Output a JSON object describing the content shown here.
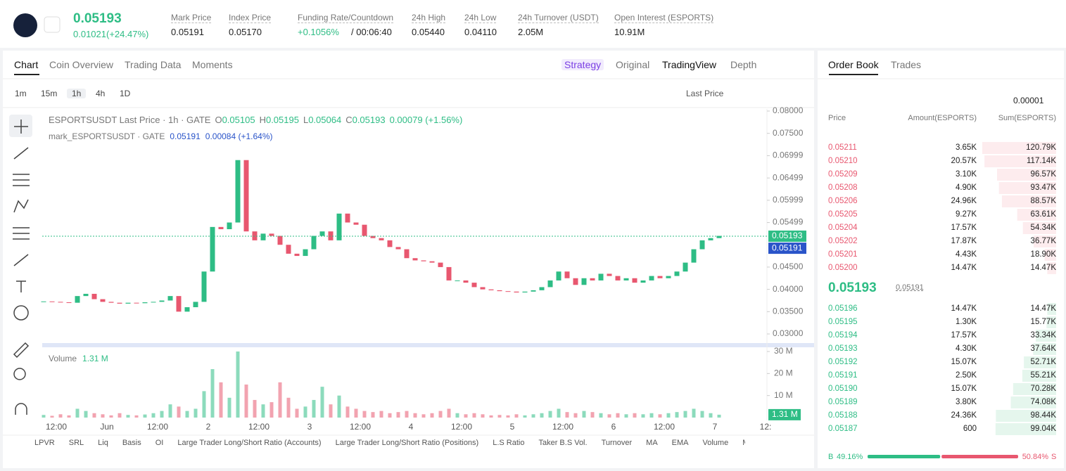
{
  "header": {
    "price": "0.05193",
    "change": "0.01021(+24.47%)",
    "stats": [
      {
        "label": "Mark Price",
        "value": "0.05191"
      },
      {
        "label": "Index Price",
        "value": "0.05170"
      },
      {
        "label": "Funding Rate/Countdown",
        "value": "+0.1056%",
        "extra": "/ 00:06:40"
      },
      {
        "label": "24h High",
        "value": "0.05440"
      },
      {
        "label": "24h Low",
        "value": "0.04110"
      },
      {
        "label": "24h Turnover (USDT)",
        "value": "2.05M"
      },
      {
        "label": "Open Interest (ESPORTS)",
        "value": "10.91M"
      }
    ]
  },
  "chart_tabs": [
    "Chart",
    "Coin Overview",
    "Trading Data",
    "Moments"
  ],
  "view_tabs": [
    "Strategy",
    "Original",
    "TradingView",
    "Depth"
  ],
  "intervals": [
    "1m",
    "15m",
    "1h",
    "4h",
    "1D"
  ],
  "price_source": "Last Price",
  "chart_data": {
    "type": "candlestick",
    "title": "ESPORTSUSDT Last Price · 1h · GATE",
    "ohlc": [
      {
        "key": "O",
        "value": "0.05105"
      },
      {
        "key": "H",
        "value": "0.05195"
      },
      {
        "key": "L",
        "value": "0.05064"
      },
      {
        "key": "C",
        "value": "0.05193"
      }
    ],
    "change": "0.00079 (+1.56%)",
    "mark_title": "mark_ESPORTSUSDT · GATE",
    "mark_values": [
      "0.05191",
      "0.00084 (+1.64%)"
    ],
    "x_labels": [
      "12:00",
      "Jun",
      "12:00",
      "2",
      "12:00",
      "3",
      "12:00",
      "4",
      "12:00",
      "5",
      "12:00",
      "6",
      "12:00",
      "7",
      "12:"
    ],
    "closes": [
      0.0373,
      0.0372,
      0.0371,
      0.037,
      0.0385,
      0.039,
      0.0378,
      0.0372,
      0.037,
      0.0368,
      0.037,
      0.0369,
      0.0371,
      0.0372,
      0.0375,
      0.0385,
      0.035,
      0.036,
      0.0372,
      0.044,
      0.054,
      0.0535,
      0.055,
      0.069,
      0.053,
      0.051,
      0.0525,
      0.052,
      0.05,
      0.048,
      0.0475,
      0.049,
      0.052,
      0.053,
      0.051,
      0.057,
      0.055,
      0.0545,
      0.052,
      0.0515,
      0.051,
      0.0495,
      0.049,
      0.047,
      0.0465,
      0.0463,
      0.046,
      0.045,
      0.042,
      0.042,
      0.0415,
      0.0405,
      0.04,
      0.0398,
      0.0396,
      0.0395,
      0.0393,
      0.0395,
      0.0398,
      0.0405,
      0.042,
      0.044,
      0.0425,
      0.041,
      0.0425,
      0.042,
      0.0435,
      0.043,
      0.042,
      0.0425,
      0.0415,
      0.042,
      0.043,
      0.0425,
      0.043,
      0.044,
      0.046,
      0.049,
      0.051,
      0.0515,
      0.052
    ],
    "ylim": [
      0.02764,
      0.08047
    ],
    "yticks": [
      {
        "value": 0.08,
        "label": "0.08000"
      },
      {
        "value": 0.075,
        "label": "0.07500"
      },
      {
        "value": 0.06999,
        "label": "0.06999"
      },
      {
        "value": 0.06499,
        "label": "0.06499"
      },
      {
        "value": 0.05999,
        "label": "0.05999"
      },
      {
        "value": 0.05499,
        "label": "0.05499"
      },
      {
        "value": 0.045,
        "label": "0.04500"
      },
      {
        "value": 0.04,
        "label": "0.04000"
      },
      {
        "value": 0.035,
        "label": "0.03500"
      },
      {
        "value": 0.03,
        "label": "0.03000"
      }
    ],
    "last_price": {
      "value": 0.05193,
      "label": "0.05193"
    },
    "mark_price": {
      "value": 0.05191,
      "label": "0.05191"
    },
    "volume": {
      "title": "Volume",
      "current": {
        "value": 1.31,
        "label": "1.31 M"
      },
      "values": [
        1.2,
        0.8,
        1.5,
        1,
        4,
        3,
        2,
        1.5,
        1,
        2,
        1.2,
        1,
        1.4,
        2,
        3,
        6,
        5,
        3,
        4,
        12,
        22,
        16,
        9,
        30,
        15,
        8,
        6,
        7,
        16,
        9,
        4,
        5,
        8,
        14,
        6,
        10,
        5,
        4,
        3,
        2.5,
        3,
        2,
        2.5,
        3,
        2,
        1.5,
        2,
        3,
        4,
        2,
        1.5,
        2,
        1.5,
        1,
        1.2,
        1,
        1.5,
        1,
        1.5,
        2,
        3,
        4,
        2.5,
        2,
        3,
        2.5,
        2,
        1.5,
        2,
        1.5,
        2,
        1.5,
        2,
        1.5,
        2,
        2.5,
        3,
        4,
        3,
        2,
        1.31
      ],
      "ylim": [
        0,
        31.6
      ],
      "yticks": [
        {
          "value": 10,
          "label": "10 M"
        },
        {
          "value": 20,
          "label": "20 M"
        },
        {
          "value": 30,
          "label": "30 M"
        }
      ]
    },
    "colors": {
      "up": "#2ebd85",
      "down": "#e8576f"
    }
  },
  "indicators": [
    "LPVR",
    "SRL",
    "Liq",
    "Basis",
    "OI",
    "Large Trader Long/Short Ratio (Accounts)",
    "Large Trader Long/Short Ratio (Positions)",
    "L.S Ratio",
    "Taker B.S Vol.",
    "Turnover",
    "MA",
    "EMA",
    "Volume",
    "MACD"
  ],
  "order_book": {
    "tabs": [
      "Order Book",
      "Trades"
    ],
    "precision": "0.00001",
    "columns": [
      "Price",
      "Amount(ESPORTS)",
      "Sum(ESPORTS)"
    ],
    "asks": [
      {
        "price": "0.05211",
        "amount": "3.65K",
        "sum": 120.79,
        "sum_label": "120.79K"
      },
      {
        "price": "0.05210",
        "amount": "20.57K",
        "sum": 117.14,
        "sum_label": "117.14K"
      },
      {
        "price": "0.05209",
        "amount": "3.10K",
        "sum": 96.57,
        "sum_label": "96.57K"
      },
      {
        "price": "0.05208",
        "amount": "4.90K",
        "sum": 93.47,
        "sum_label": "93.47K"
      },
      {
        "price": "0.05206",
        "amount": "24.96K",
        "sum": 88.57,
        "sum_label": "88.57K"
      },
      {
        "price": "0.05205",
        "amount": "9.27K",
        "sum": 63.61,
        "sum_label": "63.61K"
      },
      {
        "price": "0.05204",
        "amount": "17.57K",
        "sum": 54.34,
        "sum_label": "54.34K"
      },
      {
        "price": "0.05202",
        "amount": "17.87K",
        "sum": 36.77,
        "sum_label": "36.77K"
      },
      {
        "price": "0.05201",
        "amount": "4.43K",
        "sum": 18.9,
        "sum_label": "18.90K"
      },
      {
        "price": "0.05200",
        "amount": "14.47K",
        "sum": 14.47,
        "sum_label": "14.47K"
      }
    ],
    "mid": {
      "price": "0.05193",
      "mark": "0.05191"
    },
    "bids": [
      {
        "price": "0.05196",
        "amount": "14.47K",
        "sum": 14.47,
        "sum_label": "14.47K"
      },
      {
        "price": "0.05195",
        "amount": "1.30K",
        "sum": 15.77,
        "sum_label": "15.77K"
      },
      {
        "price": "0.05194",
        "amount": "17.57K",
        "sum": 33.34,
        "sum_label": "33.34K"
      },
      {
        "price": "0.05193",
        "amount": "4.30K",
        "sum": 37.64,
        "sum_label": "37.64K"
      },
      {
        "price": "0.05192",
        "amount": "15.07K",
        "sum": 52.71,
        "sum_label": "52.71K"
      },
      {
        "price": "0.05191",
        "amount": "2.50K",
        "sum": 55.21,
        "sum_label": "55.21K"
      },
      {
        "price": "0.05190",
        "amount": "15.07K",
        "sum": 70.28,
        "sum_label": "70.28K"
      },
      {
        "price": "0.05189",
        "amount": "3.80K",
        "sum": 74.08,
        "sum_label": "74.08K"
      },
      {
        "price": "0.05188",
        "amount": "24.36K",
        "sum": 98.44,
        "sum_label": "98.44K"
      },
      {
        "price": "0.05187",
        "amount": "600",
        "sum": 99.04,
        "sum_label": "99.04K"
      }
    ],
    "buy": {
      "letter": "B",
      "value": 49.16,
      "label": "49.16%"
    },
    "sell": {
      "letter": "S",
      "value": 50.84,
      "label": "50.84%"
    }
  }
}
